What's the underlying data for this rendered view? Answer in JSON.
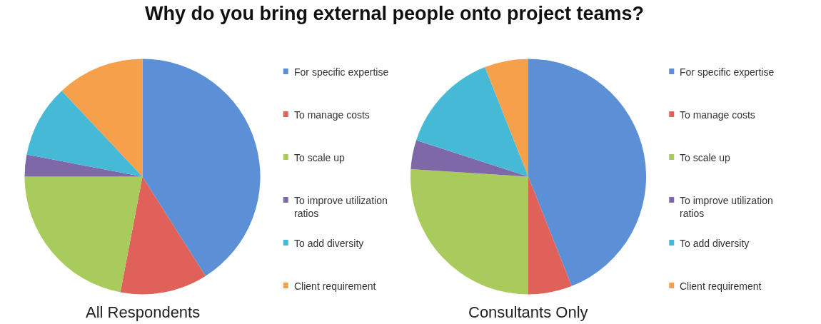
{
  "chart_data": [
    {
      "type": "pie",
      "title": "Why do you bring external people onto project teams?",
      "subtitle": "All Respondents",
      "categories": [
        "For specific expertise",
        "To manage costs",
        "To scale up",
        "To improve utilization ratios",
        "To add diversity",
        "Client requirement"
      ],
      "values": [
        41,
        12,
        22,
        3,
        10,
        12
      ],
      "colors": [
        "#5b8fd6",
        "#e0605a",
        "#a9cb5c",
        "#7f68a8",
        "#45b9d6",
        "#f6a04c"
      ],
      "legend": "right"
    },
    {
      "type": "pie",
      "subtitle": "Consultants Only",
      "categories": [
        "For specific expertise",
        "To manage costs",
        "To scale up",
        "To improve utilization ratios",
        "To add diversity",
        "Client requirement"
      ],
      "values": [
        44,
        6,
        26,
        4,
        14,
        6
      ],
      "colors": [
        "#5b8fd6",
        "#e0605a",
        "#a9cb5c",
        "#7f68a8",
        "#45b9d6",
        "#f6a04c"
      ],
      "legend": "right"
    }
  ]
}
